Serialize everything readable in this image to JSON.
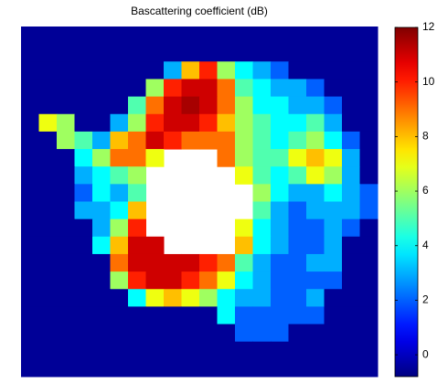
{
  "chart_data": {
    "type": "heatmap",
    "title": "Bascattering coefficient (dB)",
    "colormap": "jet",
    "clim": [
      -0.8,
      12
    ],
    "cticks": [
      0,
      2,
      4,
      6,
      8,
      10,
      12
    ],
    "values": [
      [
        -0.5,
        -0.5,
        -0.5,
        -0.5,
        -0.5,
        -0.5,
        -0.5,
        -0.5,
        -0.5,
        -0.5,
        -0.5,
        -0.5,
        -0.5,
        -0.5,
        -0.5,
        -0.5,
        -0.5,
        -0.5,
        -0.5,
        -0.5
      ],
      [
        -0.5,
        -0.5,
        -0.5,
        -0.5,
        -0.5,
        -0.5,
        -0.5,
        -0.5,
        -0.5,
        -0.5,
        -0.5,
        -0.5,
        -0.5,
        -0.5,
        -0.5,
        -0.5,
        -0.5,
        -0.5,
        -0.5,
        -0.5
      ],
      [
        -0.5,
        -0.5,
        -0.5,
        -0.5,
        -0.5,
        -0.5,
        -0.5,
        -0.5,
        3,
        8,
        10,
        6,
        4,
        3,
        2,
        -0.5,
        -0.5,
        -0.5,
        -0.5,
        -0.5
      ],
      [
        -0.5,
        -0.5,
        -0.5,
        -0.5,
        -0.5,
        -0.5,
        -0.5,
        6,
        10,
        11,
        11,
        9,
        5,
        4,
        3,
        3,
        2,
        -0.5,
        -0.5,
        -0.5
      ],
      [
        -0.5,
        -0.5,
        -0.5,
        -0.5,
        -0.5,
        -0.5,
        5,
        9,
        11,
        11.5,
        11,
        9,
        6,
        4,
        4,
        3,
        3,
        2,
        -0.5,
        -0.5
      ],
      [
        -0.5,
        7,
        6,
        -0.5,
        -0.5,
        3,
        6,
        10,
        11,
        11,
        10,
        8,
        6,
        5,
        4,
        4,
        5,
        3,
        -0.5,
        -0.5
      ],
      [
        -0.5,
        -0.5,
        6,
        5,
        3,
        8,
        9,
        11,
        10,
        9,
        9,
        9,
        6,
        5,
        4,
        5,
        6,
        4,
        2,
        -0.5
      ],
      [
        -0.5,
        -0.5,
        -0.5,
        4,
        6,
        9,
        9,
        7,
        null,
        null,
        null,
        9,
        6,
        5,
        5,
        7,
        8,
        7,
        3,
        -0.5
      ],
      [
        -0.5,
        -0.5,
        -0.5,
        3,
        4,
        5,
        6,
        null,
        null,
        null,
        null,
        null,
        7,
        5,
        4,
        5,
        7,
        6,
        3,
        -0.5
      ],
      [
        -0.5,
        -0.5,
        -0.5,
        2,
        4,
        3,
        5,
        null,
        null,
        null,
        null,
        null,
        null,
        6,
        4,
        3,
        3,
        4,
        3,
        2
      ],
      [
        -0.5,
        -0.5,
        -0.5,
        3,
        3,
        4,
        8,
        null,
        null,
        null,
        null,
        null,
        null,
        5,
        3,
        2,
        3,
        3,
        3,
        2
      ],
      [
        -0.5,
        -0.5,
        -0.5,
        -0.5,
        3,
        6,
        10,
        null,
        null,
        null,
        null,
        null,
        7,
        4,
        3,
        2,
        2,
        3,
        2,
        -0.5
      ],
      [
        -0.5,
        -0.5,
        -0.5,
        -0.5,
        4,
        8,
        11,
        11,
        null,
        null,
        null,
        null,
        8,
        4,
        3,
        2,
        2,
        3,
        -0.5,
        -0.5
      ],
      [
        -0.5,
        -0.5,
        -0.5,
        -0.5,
        -0.5,
        9,
        11,
        11,
        11,
        11,
        10,
        9,
        5,
        3,
        2,
        2,
        3,
        3,
        -0.5,
        -0.5
      ],
      [
        -0.5,
        -0.5,
        -0.5,
        -0.5,
        -0.5,
        6,
        10,
        11,
        11,
        10,
        9,
        7,
        4,
        3,
        2,
        2,
        2,
        2,
        -0.5,
        -0.5
      ],
      [
        -0.5,
        -0.5,
        -0.5,
        -0.5,
        -0.5,
        -0.5,
        4,
        7,
        8,
        7,
        6,
        4,
        3,
        3,
        2,
        2,
        3,
        -0.5,
        -0.5,
        -0.5
      ],
      [
        -0.5,
        -0.5,
        -0.5,
        -0.5,
        -0.5,
        -0.5,
        -0.5,
        -0.5,
        -0.5,
        -0.5,
        -0.5,
        4,
        2,
        2,
        2,
        2,
        2,
        -0.5,
        -0.5,
        -0.5
      ],
      [
        -0.5,
        -0.5,
        -0.5,
        -0.5,
        -0.5,
        -0.5,
        -0.5,
        -0.5,
        -0.5,
        -0.5,
        -0.5,
        -0.5,
        2,
        2,
        2,
        -0.5,
        -0.5,
        -0.5,
        -0.5,
        -0.5
      ],
      [
        -0.5,
        -0.5,
        -0.5,
        -0.5,
        -0.5,
        -0.5,
        -0.5,
        -0.5,
        -0.5,
        -0.5,
        -0.5,
        -0.5,
        -0.5,
        -0.5,
        -0.5,
        -0.5,
        -0.5,
        -0.5,
        -0.5,
        -0.5
      ],
      [
        -0.5,
        -0.5,
        -0.5,
        -0.5,
        -0.5,
        -0.5,
        -0.5,
        -0.5,
        -0.5,
        -0.5,
        -0.5,
        -0.5,
        -0.5,
        -0.5,
        -0.5,
        -0.5,
        -0.5,
        -0.5,
        -0.5,
        -0.5
      ]
    ]
  }
}
